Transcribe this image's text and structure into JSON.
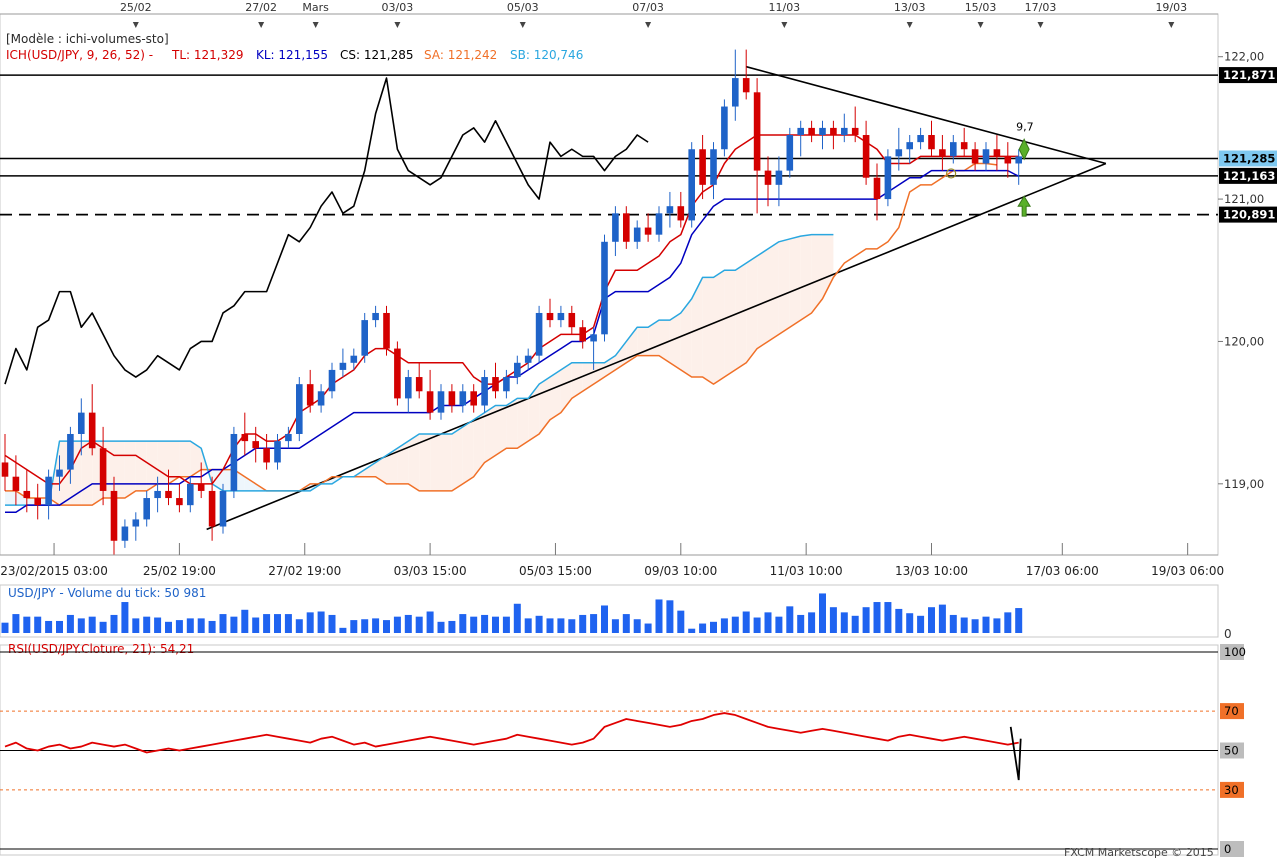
{
  "colors": {
    "tenkan": "#d40000",
    "kijun": "#0000c0",
    "chikou": "#000000",
    "senkou_a": "#f07028",
    "senkou_b": "#2aa7e0",
    "bull": "#1f63c8",
    "bear": "#d40000",
    "volume": "#1f63f0",
    "rsi": "#e00000",
    "cloud_bull": "#eef6fc",
    "cloud_bear": "#fdf0ea",
    "price_tag_bg": "#000000",
    "current_tag_bg": "#7ec8f0",
    "rsi_tag_bg": "#f07028"
  },
  "header": {
    "model": "[Modèle : ichi-volumes-sto]",
    "ich": "ICH(USD/JPY, 9, 26, 52) -",
    "tl": "TL: 121,329",
    "kl": "KL: 121,155",
    "cs": "CS: 121,285",
    "sa": "SA: 121,242",
    "sb": "SB: 120,746"
  },
  "top_axis_labels": [
    "25/02",
    "27/02",
    "Mars",
    "03/03",
    "05/03",
    "07/03",
    "11/03",
    "13/03",
    "15/03",
    "17/03",
    "19/03"
  ],
  "bottom_axis_labels": [
    "23/02/2015 03:00",
    "25/02 19:00",
    "27/02 19:00",
    "03/03 15:00",
    "05/03 15:00",
    "09/03 10:00",
    "11/03 10:00",
    "13/03 10:00",
    "17/03 06:00",
    "19/03 06:00"
  ],
  "price_axis_labels": [
    "122,00",
    "121,00",
    "120,00",
    "119,00"
  ],
  "price_tags": {
    "resistance": "121,871",
    "current": "121,285",
    "support": "121,163",
    "dashed": "120,891"
  },
  "annotations": {
    "pattern_count": "9,7"
  },
  "volume_panel": {
    "title": "USD/JPY - Volume du tick: 50 981",
    "axis_zero": "0"
  },
  "rsi_panel": {
    "title": "RSI(USD/JPY.Cloture, 21): 54,21",
    "levels": [
      "100",
      "70",
      "50",
      "30",
      "0"
    ]
  },
  "footer": {
    "copyright": "FXCM Marketscope © 2015"
  },
  "chart_data": [
    {
      "type": "candlestick",
      "instrument": "USD/JPY",
      "ylim": [
        118.5,
        122.3
      ],
      "candles": [
        [
          119.15,
          119.35,
          118.95,
          119.05
        ],
        [
          119.05,
          119.2,
          118.85,
          118.95
        ],
        [
          118.95,
          119.1,
          118.8,
          118.9
        ],
        [
          118.9,
          119.0,
          118.75,
          118.85
        ],
        [
          118.85,
          119.1,
          118.75,
          119.05
        ],
        [
          119.05,
          119.2,
          118.95,
          119.1
        ],
        [
          119.1,
          119.4,
          119.0,
          119.35
        ],
        [
          119.35,
          119.6,
          119.2,
          119.5
        ],
        [
          119.5,
          119.7,
          119.2,
          119.25
        ],
        [
          119.25,
          119.4,
          118.85,
          118.95
        ],
        [
          118.95,
          119.05,
          118.5,
          118.6
        ],
        [
          118.6,
          118.75,
          118.55,
          118.7
        ],
        [
          118.7,
          118.8,
          118.6,
          118.75
        ],
        [
          118.75,
          118.95,
          118.7,
          118.9
        ],
        [
          118.9,
          119.05,
          118.8,
          118.95
        ],
        [
          118.95,
          119.1,
          118.85,
          118.9
        ],
        [
          118.9,
          119.0,
          118.8,
          118.85
        ],
        [
          118.85,
          119.05,
          118.8,
          119.0
        ],
        [
          119.0,
          119.15,
          118.9,
          118.95
        ],
        [
          118.95,
          119.05,
          118.6,
          118.7
        ],
        [
          118.7,
          119.0,
          118.65,
          118.95
        ],
        [
          118.95,
          119.4,
          118.9,
          119.35
        ],
        [
          119.35,
          119.5,
          119.2,
          119.3
        ],
        [
          119.3,
          119.4,
          119.15,
          119.25
        ],
        [
          119.25,
          119.35,
          119.1,
          119.15
        ],
        [
          119.15,
          119.35,
          119.1,
          119.3
        ],
        [
          119.3,
          119.4,
          119.25,
          119.35
        ],
        [
          119.35,
          119.75,
          119.3,
          119.7
        ],
        [
          119.7,
          119.8,
          119.5,
          119.55
        ],
        [
          119.55,
          119.7,
          119.5,
          119.65
        ],
        [
          119.65,
          119.85,
          119.6,
          119.8
        ],
        [
          119.8,
          119.95,
          119.75,
          119.85
        ],
        [
          119.85,
          119.95,
          119.8,
          119.9
        ],
        [
          119.9,
          120.2,
          119.85,
          120.15
        ],
        [
          120.15,
          120.25,
          120.1,
          120.2
        ],
        [
          120.2,
          120.25,
          119.9,
          119.95
        ],
        [
          119.95,
          120.0,
          119.55,
          119.6
        ],
        [
          119.6,
          119.8,
          119.5,
          119.75
        ],
        [
          119.75,
          119.85,
          119.6,
          119.65
        ],
        [
          119.65,
          119.8,
          119.45,
          119.5
        ],
        [
          119.5,
          119.7,
          119.45,
          119.65
        ],
        [
          119.65,
          119.7,
          119.5,
          119.55
        ],
        [
          119.55,
          119.7,
          119.5,
          119.65
        ],
        [
          119.65,
          119.7,
          119.5,
          119.55
        ],
        [
          119.55,
          119.8,
          119.5,
          119.75
        ],
        [
          119.75,
          119.85,
          119.6,
          119.65
        ],
        [
          119.65,
          119.8,
          119.6,
          119.75
        ],
        [
          119.75,
          119.9,
          119.7,
          119.85
        ],
        [
          119.85,
          119.95,
          119.8,
          119.9
        ],
        [
          119.9,
          120.25,
          119.85,
          120.2
        ],
        [
          120.2,
          120.3,
          120.1,
          120.15
        ],
        [
          120.15,
          120.25,
          120.1,
          120.2
        ],
        [
          120.2,
          120.25,
          120.05,
          120.1
        ],
        [
          120.1,
          120.15,
          119.95,
          120.0
        ],
        [
          120.0,
          120.1,
          119.8,
          120.05
        ],
        [
          120.05,
          120.75,
          120.0,
          120.7
        ],
        [
          120.7,
          120.95,
          120.6,
          120.9
        ],
        [
          120.9,
          120.95,
          120.65,
          120.7
        ],
        [
          120.7,
          120.85,
          120.65,
          120.8
        ],
        [
          120.8,
          120.9,
          120.7,
          120.75
        ],
        [
          120.75,
          120.95,
          120.7,
          120.9
        ],
        [
          120.9,
          121.05,
          120.8,
          120.95
        ],
        [
          120.95,
          121.05,
          120.8,
          120.85
        ],
        [
          120.85,
          121.4,
          120.8,
          121.35
        ],
        [
          121.35,
          121.45,
          121.0,
          121.1
        ],
        [
          121.1,
          121.4,
          121.0,
          121.35
        ],
        [
          121.35,
          121.7,
          121.3,
          121.65
        ],
        [
          121.65,
          122.05,
          121.55,
          121.85
        ],
        [
          121.85,
          122.05,
          121.7,
          121.75
        ],
        [
          121.75,
          121.85,
          120.9,
          121.2
        ],
        [
          121.2,
          121.3,
          120.95,
          121.1
        ],
        [
          121.1,
          121.3,
          120.95,
          121.2
        ],
        [
          121.2,
          121.5,
          121.15,
          121.45
        ],
        [
          121.45,
          121.55,
          121.3,
          121.5
        ],
        [
          121.5,
          121.55,
          121.4,
          121.45
        ],
        [
          121.45,
          121.55,
          121.35,
          121.5
        ],
        [
          121.5,
          121.55,
          121.35,
          121.45
        ],
        [
          121.45,
          121.6,
          121.4,
          121.5
        ],
        [
          121.5,
          121.65,
          121.4,
          121.45
        ],
        [
          121.45,
          121.55,
          121.1,
          121.15
        ],
        [
          121.15,
          121.25,
          120.85,
          121.0
        ],
        [
          121.0,
          121.35,
          120.95,
          121.3
        ],
        [
          121.3,
          121.5,
          121.2,
          121.35
        ],
        [
          121.35,
          121.45,
          121.25,
          121.4
        ],
        [
          121.4,
          121.5,
          121.35,
          121.45
        ],
        [
          121.45,
          121.55,
          121.3,
          121.35
        ],
        [
          121.35,
          121.45,
          121.2,
          121.3
        ],
        [
          121.3,
          121.45,
          121.25,
          121.4
        ],
        [
          121.4,
          121.5,
          121.3,
          121.35
        ],
        [
          121.35,
          121.4,
          121.2,
          121.25
        ],
        [
          121.25,
          121.4,
          121.2,
          121.35
        ],
        [
          121.35,
          121.45,
          121.2,
          121.3
        ],
        [
          121.3,
          121.4,
          121.15,
          121.25
        ],
        [
          121.25,
          121.35,
          121.1,
          121.3
        ]
      ],
      "tenkan": [
        119.2,
        119.15,
        119.1,
        119.05,
        119.0,
        119.0,
        119.1,
        119.25,
        119.3,
        119.25,
        119.2,
        119.2,
        119.2,
        119.15,
        119.1,
        119.05,
        119.05,
        119.0,
        119.0,
        119.0,
        119.1,
        119.25,
        119.35,
        119.35,
        119.3,
        119.3,
        119.35,
        119.5,
        119.55,
        119.6,
        119.7,
        119.75,
        119.8,
        119.9,
        119.95,
        119.95,
        119.9,
        119.85,
        119.85,
        119.85,
        119.85,
        119.85,
        119.85,
        119.75,
        119.7,
        119.7,
        119.75,
        119.8,
        119.85,
        119.95,
        120.0,
        120.05,
        120.05,
        120.05,
        120.1,
        120.35,
        120.5,
        120.5,
        120.5,
        120.55,
        120.6,
        120.7,
        120.75,
        120.95,
        121.05,
        121.1,
        121.25,
        121.35,
        121.4,
        121.45,
        121.45,
        121.45,
        121.45,
        121.45,
        121.45,
        121.45,
        121.45,
        121.45,
        121.45,
        121.4,
        121.35,
        121.25,
        121.25,
        121.25,
        121.3,
        121.3,
        121.3,
        121.3,
        121.3,
        121.3,
        121.3,
        121.3,
        121.3,
        121.3
      ],
      "kijun": [
        118.8,
        118.8,
        118.85,
        118.85,
        118.85,
        118.85,
        118.9,
        118.95,
        119.0,
        119.0,
        119.0,
        119.0,
        119.0,
        119.0,
        119.0,
        119.0,
        119.0,
        119.05,
        119.05,
        119.1,
        119.1,
        119.15,
        119.2,
        119.25,
        119.25,
        119.25,
        119.25,
        119.25,
        119.3,
        119.35,
        119.4,
        119.45,
        119.5,
        119.5,
        119.5,
        119.5,
        119.5,
        119.5,
        119.5,
        119.5,
        119.55,
        119.55,
        119.55,
        119.6,
        119.65,
        119.7,
        119.75,
        119.75,
        119.8,
        119.85,
        119.9,
        119.95,
        120.0,
        120.0,
        120.05,
        120.3,
        120.35,
        120.35,
        120.35,
        120.35,
        120.4,
        120.45,
        120.55,
        120.75,
        120.85,
        120.95,
        121.0,
        121.0,
        121.0,
        121.0,
        121.0,
        121.0,
        121.0,
        121.0,
        121.0,
        121.0,
        121.0,
        121.0,
        121.0,
        121.0,
        121.0,
        121.05,
        121.1,
        121.15,
        121.15,
        121.2,
        121.2,
        121.2,
        121.2,
        121.2,
        121.2,
        121.2,
        121.2,
        121.16
      ],
      "senkou_a": [
        118.95,
        118.95,
        118.9,
        118.9,
        118.9,
        118.85,
        118.85,
        118.85,
        118.85,
        118.9,
        118.9,
        118.9,
        118.95,
        118.95,
        119.0,
        119.0,
        119.05,
        119.05,
        119.1,
        119.1,
        119.1,
        119.1,
        119.05,
        119.0,
        118.95,
        118.95,
        118.95,
        118.95,
        119.0,
        119.0,
        119.05,
        119.05,
        119.05,
        119.05,
        119.05,
        119.0,
        119.0,
        119.0,
        118.95,
        118.95,
        118.95,
        118.95,
        119.0,
        119.05,
        119.15,
        119.2,
        119.25,
        119.25,
        119.3,
        119.35,
        119.45,
        119.5,
        119.6,
        119.65,
        119.7,
        119.75,
        119.8,
        119.85,
        119.9,
        119.9,
        119.9,
        119.85,
        119.8,
        119.75,
        119.75,
        119.7,
        119.75,
        119.8,
        119.85,
        119.95,
        120.0,
        120.05,
        120.1,
        120.15,
        120.2,
        120.3,
        120.45,
        120.55,
        120.6,
        120.65,
        120.65,
        120.7,
        120.8,
        121.05,
        121.1,
        121.1,
        121.15,
        121.2,
        121.2,
        121.25,
        121.25,
        121.24
      ],
      "senkou_b": [
        118.85,
        118.85,
        118.85,
        118.85,
        118.85,
        119.3,
        119.3,
        119.3,
        119.3,
        119.3,
        119.3,
        119.3,
        119.3,
        119.3,
        119.3,
        119.3,
        119.3,
        119.3,
        119.25,
        119.0,
        118.95,
        118.95,
        118.95,
        118.95,
        118.95,
        118.95,
        118.95,
        118.95,
        118.95,
        119.0,
        119.0,
        119.05,
        119.05,
        119.1,
        119.15,
        119.2,
        119.25,
        119.3,
        119.35,
        119.35,
        119.35,
        119.35,
        119.4,
        119.45,
        119.5,
        119.55,
        119.55,
        119.6,
        119.6,
        119.7,
        119.75,
        119.8,
        119.85,
        119.85,
        119.85,
        119.85,
        119.9,
        120.0,
        120.1,
        120.1,
        120.15,
        120.15,
        120.2,
        120.3,
        120.45,
        120.45,
        120.5,
        120.5,
        120.55,
        120.6,
        120.65,
        120.7,
        120.72,
        120.74,
        120.75,
        120.75,
        120.75
      ],
      "chikou": [
        119.7,
        119.95,
        119.8,
        120.1,
        120.15,
        120.35,
        120.35,
        120.1,
        120.2,
        120.05,
        119.9,
        119.8,
        119.75,
        119.8,
        119.9,
        119.85,
        119.8,
        119.95,
        120.0,
        120.0,
        120.2,
        120.25,
        120.35,
        120.35,
        120.35,
        120.55,
        120.75,
        120.7,
        120.8,
        120.95,
        121.05,
        120.9,
        120.95,
        121.2,
        121.6,
        121.85,
        121.35,
        121.2,
        121.15,
        121.1,
        121.15,
        121.3,
        121.45,
        121.5,
        121.4,
        121.55,
        121.4,
        121.25,
        121.1,
        121.0,
        121.4,
        121.3,
        121.35,
        121.3,
        121.3,
        121.2,
        121.3,
        121.35,
        121.45,
        121.4
      ]
    },
    {
      "type": "bar",
      "title": "USD/JPY - Volume du tick: 50 981",
      "values": [
        1200,
        2200,
        1900,
        1900,
        1400,
        1400,
        2100,
        1700,
        1900,
        1300,
        2100,
        3600,
        1700,
        1900,
        1800,
        1300,
        1500,
        1700,
        1700,
        1400,
        2200,
        1900,
        2700,
        1800,
        2200,
        2200,
        2200,
        1600,
        2400,
        2500,
        2100,
        600,
        1500,
        1600,
        1700,
        1500,
        1900,
        2100,
        1900,
        2500,
        1300,
        1400,
        2200,
        1900,
        2100,
        1900,
        1900,
        3400,
        1700,
        2000,
        1700,
        1700,
        1600,
        2100,
        2200,
        3200,
        1600,
        2200,
        1600,
        1100,
        3900,
        3800,
        2600,
        500,
        1100,
        1300,
        1700,
        1900,
        2500,
        1800,
        2400,
        1900,
        3100,
        2100,
        2400,
        4600,
        3000,
        2400,
        2000,
        3000,
        3600,
        3600,
        2800,
        2300,
        2000,
        3000,
        3300,
        2100,
        1800,
        1600,
        1900,
        1700,
        2400,
        2900
      ],
      "ylim": [
        0,
        5000
      ]
    },
    {
      "type": "line",
      "title": "RSI(USD/JPY.Cloture, 21): 54,21",
      "ylim": [
        0,
        100
      ],
      "levels": [
        70,
        50,
        30
      ],
      "values": [
        52,
        54,
        51,
        50,
        52,
        53,
        51,
        52,
        54,
        53,
        52,
        53,
        51,
        49,
        50,
        51,
        50,
        51,
        52,
        53,
        54,
        55,
        56,
        57,
        58,
        57,
        56,
        55,
        54,
        56,
        57,
        55,
        53,
        54,
        52,
        53,
        54,
        55,
        56,
        57,
        56,
        55,
        54,
        53,
        54,
        55,
        56,
        58,
        57,
        56,
        55,
        54,
        53,
        54,
        56,
        62,
        64,
        66,
        65,
        64,
        63,
        62,
        63,
        65,
        66,
        68,
        69,
        68,
        66,
        64,
        62,
        61,
        60,
        59,
        60,
        61,
        60,
        59,
        58,
        57,
        56,
        55,
        57,
        58,
        57,
        56,
        55,
        56,
        57,
        56,
        55,
        54,
        53,
        54
      ]
    }
  ]
}
